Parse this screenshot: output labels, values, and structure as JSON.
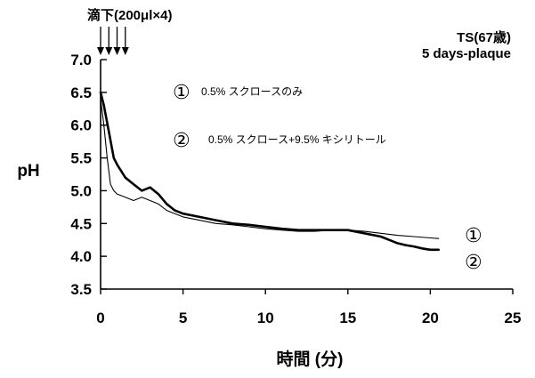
{
  "chart_data": {
    "type": "line",
    "annotation_drip": "滴下(200μl×4)",
    "subject": "TS(67歳)",
    "sample": "5 days-plaque",
    "xlabel": "時間 (分)",
    "ylabel": "pH",
    "xlim": [
      0,
      25
    ],
    "ylim": [
      3.5,
      7.0
    ],
    "xticks": [
      "0",
      "5",
      "10",
      "15",
      "20",
      "25"
    ],
    "yticks": [
      "3.5",
      "4.0",
      "4.5",
      "5.0",
      "5.5",
      "6.0",
      "6.5",
      "7.0"
    ],
    "drip_times": [
      0.0,
      0.5,
      1.0,
      1.5
    ],
    "legend": [
      {
        "marker": "①",
        "label": "0.5% スクロースのみ"
      },
      {
        "marker": "②",
        "label": "0.5% スクロース+9.5% キシリトール"
      }
    ],
    "series": [
      {
        "name": "①",
        "end_label": "①",
        "x": [
          0.0,
          0.2,
          0.5,
          0.8,
          1.0,
          1.5,
          2.0,
          2.5,
          3.0,
          3.5,
          4.0,
          4.5,
          5.0,
          6.0,
          7.0,
          8.0,
          9.0,
          10.0,
          11.0,
          12.0,
          13.0,
          14.0,
          15.0,
          16.0,
          17.0,
          17.5,
          18.0,
          18.5,
          19.0,
          19.5,
          20.0,
          20.5
        ],
        "values": [
          6.5,
          6.3,
          5.9,
          5.5,
          5.4,
          5.2,
          5.1,
          5.0,
          5.05,
          4.95,
          4.8,
          4.7,
          4.65,
          4.6,
          4.55,
          4.5,
          4.48,
          4.45,
          4.42,
          4.4,
          4.4,
          4.4,
          4.4,
          4.35,
          4.3,
          4.25,
          4.2,
          4.17,
          4.15,
          4.12,
          4.1,
          4.1
        ]
      },
      {
        "name": "②",
        "end_label": "②",
        "x": [
          0.0,
          0.2,
          0.4,
          0.6,
          0.8,
          1.0,
          1.5,
          2.0,
          2.5,
          3.0,
          3.5,
          4.0,
          5.0,
          6.0,
          7.0,
          8.0,
          9.0,
          10.0,
          11.0,
          12.0,
          13.0,
          14.0,
          15.0,
          16.0,
          17.0,
          18.0,
          19.0,
          20.0,
          20.5
        ],
        "values": [
          6.4,
          6.0,
          5.5,
          5.1,
          5.0,
          4.95,
          4.9,
          4.85,
          4.9,
          4.85,
          4.8,
          4.7,
          4.6,
          4.55,
          4.5,
          4.48,
          4.45,
          4.42,
          4.4,
          4.38,
          4.38,
          4.4,
          4.4,
          4.38,
          4.35,
          4.32,
          4.3,
          4.28,
          4.27
        ]
      }
    ],
    "grid": false
  }
}
